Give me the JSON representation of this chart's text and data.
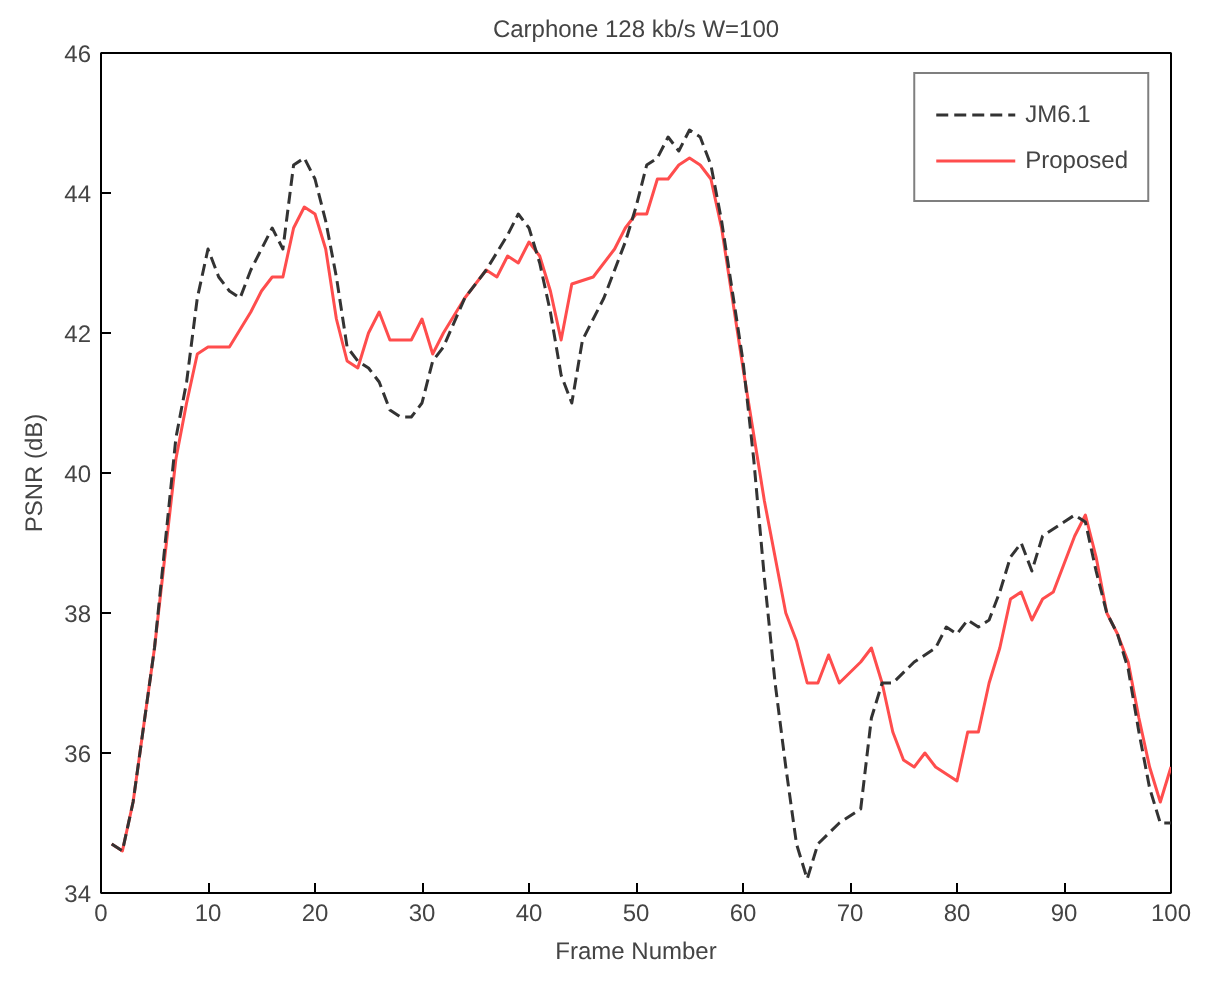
{
  "chart_data": {
    "type": "line",
    "title": "Carphone 128 kb/s W=100",
    "xlabel": "Frame Number",
    "ylabel": "PSNR (dB)",
    "xlim": [
      0,
      100
    ],
    "ylim": [
      34,
      46
    ],
    "xticks": [
      0,
      10,
      20,
      30,
      40,
      50,
      60,
      70,
      80,
      90,
      100
    ],
    "yticks": [
      34,
      36,
      38,
      40,
      42,
      44,
      46
    ],
    "grid": false,
    "legend": "top right",
    "marker": "none",
    "series": [
      {
        "name": "JM6.1",
        "color": "#333333",
        "line_style": "dashed",
        "x": [
          1,
          2,
          3,
          5,
          7,
          8,
          9,
          10,
          11,
          12,
          13,
          14,
          15,
          16,
          17,
          18,
          19,
          20,
          21,
          22,
          23,
          24,
          25,
          26,
          27,
          28,
          29,
          30,
          31,
          32,
          34,
          36,
          38,
          39,
          40,
          41,
          42,
          43,
          44,
          45,
          47,
          49,
          50,
          51,
          52,
          53,
          54,
          55,
          56,
          57,
          58,
          60,
          61,
          62,
          63,
          64,
          65,
          66,
          67,
          69,
          71,
          72,
          73,
          74,
          76,
          78,
          79,
          80,
          81,
          82,
          83,
          84,
          85,
          86,
          87,
          88,
          90,
          91,
          92,
          93,
          94,
          95,
          96,
          97,
          98,
          99,
          100
        ],
        "values": [
          34.7,
          34.6,
          35.3,
          37.5,
          40.5,
          41.3,
          42.5,
          43.2,
          42.8,
          42.6,
          42.5,
          42.9,
          43.2,
          43.5,
          43.2,
          44.4,
          44.5,
          44.2,
          43.6,
          42.8,
          41.8,
          41.6,
          41.5,
          41.3,
          40.9,
          40.8,
          40.8,
          41.0,
          41.6,
          41.8,
          42.5,
          42.9,
          43.4,
          43.7,
          43.5,
          43.0,
          42.3,
          41.4,
          41.0,
          41.9,
          42.5,
          43.3,
          43.8,
          44.4,
          44.5,
          44.8,
          44.6,
          44.9,
          44.8,
          44.4,
          43.6,
          41.6,
          40.2,
          38.5,
          37.0,
          35.8,
          34.7,
          34.2,
          34.7,
          35.0,
          35.2,
          36.5,
          37.0,
          37.0,
          37.3,
          37.5,
          37.8,
          37.7,
          37.9,
          37.8,
          37.9,
          38.3,
          38.8,
          39.0,
          38.6,
          39.1,
          39.3,
          39.4,
          39.3,
          38.6,
          38.0,
          37.7,
          37.2,
          36.3,
          35.5,
          35.0,
          35.0
        ]
      },
      {
        "name": "Proposed",
        "color": "#ff4d4d",
        "line_style": "solid",
        "x": [
          1,
          2,
          3,
          5,
          7,
          8,
          9,
          10,
          12,
          14,
          15,
          16,
          17,
          18,
          19,
          20,
          21,
          22,
          23,
          24,
          25,
          26,
          27,
          28,
          29,
          30,
          31,
          32,
          34,
          36,
          37,
          38,
          39,
          40,
          41,
          42,
          43,
          44,
          46,
          48,
          49,
          50,
          51,
          52,
          53,
          54,
          55,
          56,
          57,
          58,
          60,
          62,
          64,
          65,
          66,
          67,
          68,
          69,
          71,
          72,
          73,
          74,
          75,
          76,
          77,
          78,
          79,
          80,
          81,
          82,
          83,
          84,
          85,
          86,
          87,
          88,
          89,
          90,
          91,
          92,
          93,
          94,
          95,
          96,
          97,
          98,
          99,
          100
        ],
        "values": [
          34.7,
          34.6,
          35.3,
          37.5,
          40.2,
          41.0,
          41.7,
          41.8,
          41.8,
          42.3,
          42.6,
          42.8,
          42.8,
          43.5,
          43.8,
          43.7,
          43.2,
          42.2,
          41.6,
          41.5,
          42.0,
          42.3,
          41.9,
          41.9,
          41.9,
          42.2,
          41.7,
          42.0,
          42.5,
          42.9,
          42.8,
          43.1,
          43.0,
          43.3,
          43.1,
          42.6,
          41.9,
          42.7,
          42.8,
          43.2,
          43.5,
          43.7,
          43.7,
          44.2,
          44.2,
          44.4,
          44.5,
          44.4,
          44.2,
          43.5,
          41.5,
          39.6,
          38.0,
          37.6,
          37.0,
          37.0,
          37.4,
          37.0,
          37.3,
          37.5,
          37.0,
          36.3,
          35.9,
          35.8,
          36.0,
          35.8,
          35.7,
          35.6,
          36.3,
          36.3,
          37.0,
          37.5,
          38.2,
          38.3,
          37.9,
          38.2,
          38.3,
          38.7,
          39.1,
          39.4,
          38.8,
          38.0,
          37.7,
          37.3,
          36.5,
          35.8,
          35.3,
          35.8
        ]
      }
    ]
  }
}
